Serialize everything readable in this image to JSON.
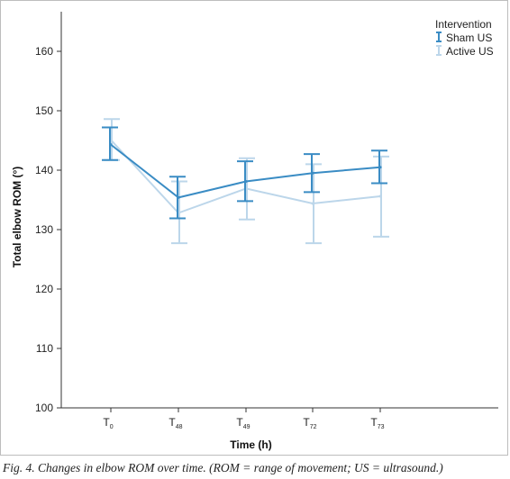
{
  "chart_data": {
    "type": "line",
    "title": "",
    "xlabel": "Time (h)",
    "ylabel": "Total elbow ROM (°)",
    "ylim": [
      100,
      165
    ],
    "yticks": [
      100,
      110,
      120,
      130,
      140,
      150,
      160
    ],
    "categories": [
      {
        "base": "T",
        "sub": "0"
      },
      {
        "base": "T",
        "sub": "48"
      },
      {
        "base": "T",
        "sub": "49"
      },
      {
        "base": "T",
        "sub": "72"
      },
      {
        "base": "T",
        "sub": "73"
      }
    ],
    "legend": {
      "title": "Intervention",
      "position": "top-right"
    },
    "series": [
      {
        "name": "Active US",
        "color": "#bcd6ea",
        "values": [
          145.1,
          132.8,
          136.9,
          134.4,
          135.6
        ],
        "lower": [
          141.7,
          127.7,
          131.7,
          127.7,
          128.8
        ],
        "upper": [
          148.6,
          138.1,
          142.0,
          141.0,
          142.3
        ]
      },
      {
        "name": "Sham US",
        "color": "#3a8cc4",
        "values": [
          144.3,
          135.4,
          138.1,
          139.5,
          140.5
        ],
        "lower": [
          141.7,
          131.9,
          134.8,
          136.3,
          137.8
        ],
        "upper": [
          147.2,
          138.9,
          141.5,
          142.7,
          143.3
        ]
      }
    ]
  },
  "caption": "Fig. 4. Changes in elbow ROM over time. (ROM = range of movement;  US = ultrasound.)"
}
